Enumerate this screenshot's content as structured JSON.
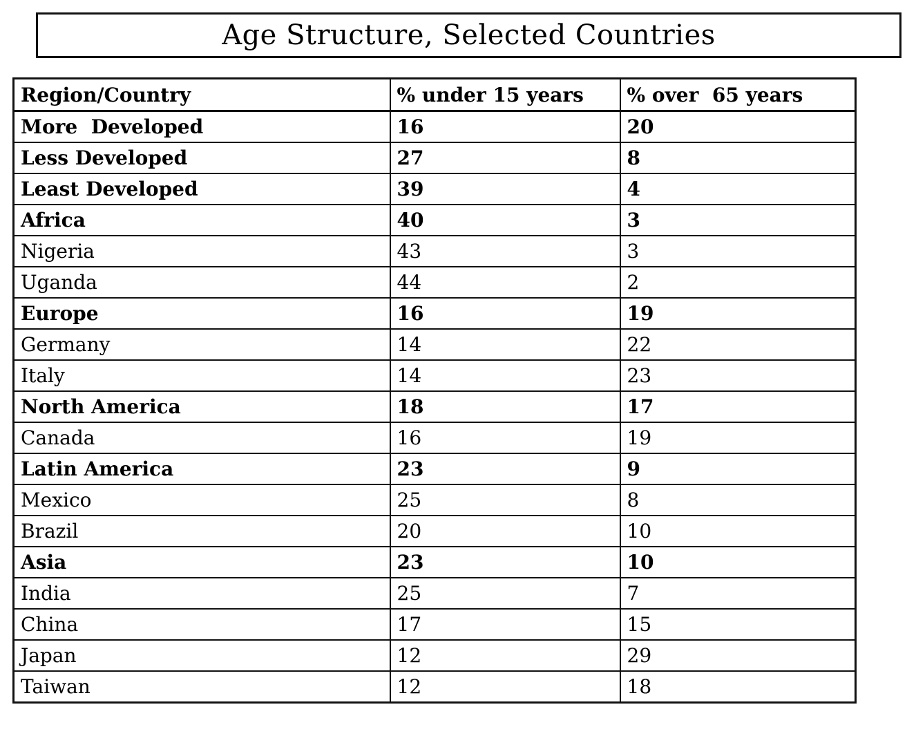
{
  "title": "Age Structure, Selected Countries",
  "colors": {
    "background": "#ffffff",
    "border": "#111111",
    "text": "#000000"
  },
  "table": {
    "headers": [
      "Region/Country",
      "% under 15 years",
      "% over  65 years"
    ],
    "rows": [
      {
        "label": "More  Developed",
        "under15": "16",
        "over65": "20",
        "bold": true
      },
      {
        "label": "Less Developed",
        "under15": "27",
        "over65": "8",
        "bold": true
      },
      {
        "label": "Least Developed",
        "under15": "39",
        "over65": "4",
        "bold": true
      },
      {
        "label": "Africa",
        "under15": "40",
        "over65": "3",
        "bold": true
      },
      {
        "label": "Nigeria",
        "under15": "43",
        "over65": "3",
        "bold": false
      },
      {
        "label": "Uganda",
        "under15": "44",
        "over65": "2",
        "bold": false
      },
      {
        "label": "Europe",
        "under15": "16",
        "over65": "19",
        "bold": true
      },
      {
        "label": "Germany",
        "under15": "14",
        "over65": "22",
        "bold": false
      },
      {
        "label": "Italy",
        "under15": "14",
        "over65": "23",
        "bold": false
      },
      {
        "label": "North America",
        "under15": "18",
        "over65": "17",
        "bold": true
      },
      {
        "label": "Canada",
        "under15": "16",
        "over65": "19",
        "bold": false
      },
      {
        "label": "Latin America",
        "under15": "23",
        "over65": "9",
        "bold": true
      },
      {
        "label": "Mexico",
        "under15": "25",
        "over65": "8",
        "bold": false
      },
      {
        "label": "Brazil",
        "under15": "20",
        "over65": "10",
        "bold": false
      },
      {
        "label": "Asia",
        "under15": "23",
        "over65": "10",
        "bold": true
      },
      {
        "label": "India",
        "under15": "25",
        "over65": "7",
        "bold": false
      },
      {
        "label": "China",
        "under15": "17",
        "over65": "15",
        "bold": false
      },
      {
        "label": "Japan",
        "under15": "12",
        "over65": "29",
        "bold": false
      },
      {
        "label": "Taiwan",
        "under15": "12",
        "over65": "18",
        "bold": false
      }
    ]
  },
  "chart_data": {
    "type": "table",
    "title": "Age Structure, Selected Countries",
    "columns": [
      "Region/Country",
      "% under 15 years",
      "% over 65 years"
    ],
    "rows": [
      [
        "More Developed",
        16,
        20
      ],
      [
        "Less Developed",
        27,
        8
      ],
      [
        "Least Developed",
        39,
        4
      ],
      [
        "Africa",
        40,
        3
      ],
      [
        "Nigeria",
        43,
        3
      ],
      [
        "Uganda",
        44,
        2
      ],
      [
        "Europe",
        16,
        19
      ],
      [
        "Germany",
        14,
        22
      ],
      [
        "Italy",
        14,
        23
      ],
      [
        "North America",
        18,
        17
      ],
      [
        "Canada",
        16,
        19
      ],
      [
        "Latin America",
        23,
        9
      ],
      [
        "Mexico",
        25,
        8
      ],
      [
        "Brazil",
        20,
        10
      ],
      [
        "Asia",
        23,
        10
      ],
      [
        "India",
        25,
        7
      ],
      [
        "China",
        17,
        15
      ],
      [
        "Japan",
        12,
        29
      ],
      [
        "Taiwan",
        12,
        18
      ]
    ],
    "bold_rows": [
      "More Developed",
      "Less Developed",
      "Least Developed",
      "Africa",
      "Europe",
      "North America",
      "Latin America",
      "Asia"
    ],
    "layout": "bold rows are regional/development aggregates; plain rows are individual countries"
  }
}
